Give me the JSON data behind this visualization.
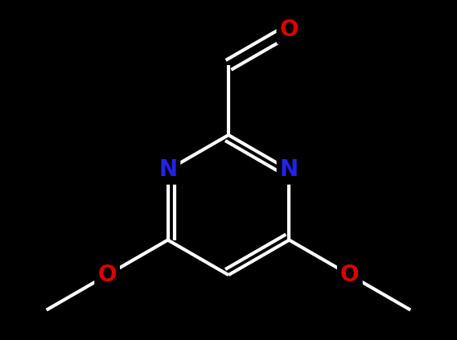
{
  "background_color": "#000000",
  "bond_color": "#ffffff",
  "bond_width": 3.0,
  "atom_labels": {
    "N1": {
      "symbol": "N",
      "color": "#2222ee",
      "fontsize": 20
    },
    "N3": {
      "symbol": "N",
      "color": "#2222ee",
      "fontsize": 20
    },
    "O_cho": {
      "symbol": "O",
      "color": "#dd0000",
      "fontsize": 20
    },
    "O_left": {
      "symbol": "O",
      "color": "#dd0000",
      "fontsize": 20
    },
    "O_right": {
      "symbol": "O",
      "color": "#dd0000",
      "fontsize": 20
    }
  },
  "figsize": [
    5.68,
    4.23
  ],
  "dpi": 100
}
